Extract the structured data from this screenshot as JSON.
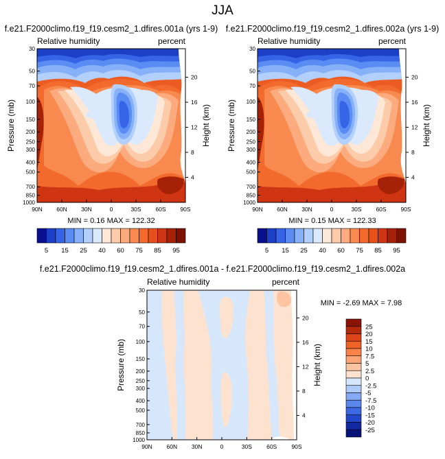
{
  "figure_title": "JJA",
  "chart_data": [
    {
      "type": "heatmap",
      "panel": "top-left",
      "title": "f.e21.F2000climo.f19_f19.cesm2_1.dfires.001a (yrs 1-9)",
      "left_label": "Relative humidity",
      "right_label": "percent",
      "xlabel": "",
      "ylabel": "Pressure (mb)",
      "y2label": "Height (km)",
      "x_ticks": [
        "90N",
        "60N",
        "30N",
        "0",
        "30S",
        "60S",
        "90S"
      ],
      "y_ticks": [
        "1000",
        "850",
        "700",
        "500",
        "400",
        "300",
        "250",
        "200",
        "150",
        "100",
        "70",
        "50",
        "30"
      ],
      "y2_ticks": [
        "4",
        "8",
        "12",
        "16",
        "20"
      ],
      "stats": "MIN =  0.16  MAX = 122.32",
      "min": 0.16,
      "max": 122.32
    },
    {
      "type": "heatmap",
      "panel": "top-right",
      "title": "f.e21.F2000climo.f19_f19.cesm2_1.dfires.002a (yrs 1-9)",
      "left_label": "Relative humidity",
      "right_label": "percent",
      "xlabel": "",
      "ylabel": "Pressure (mb)",
      "y2label": "Height (km)",
      "x_ticks": [
        "90N",
        "60N",
        "30N",
        "0",
        "30S",
        "60S",
        "90S"
      ],
      "y_ticks": [
        "1000",
        "850",
        "700",
        "500",
        "400",
        "300",
        "250",
        "200",
        "150",
        "100",
        "70",
        "50",
        "30"
      ],
      "y2_ticks": [
        "4",
        "8",
        "12",
        "16",
        "20"
      ],
      "stats": "MIN =  0.15  MAX = 122.33",
      "min": 0.15,
      "max": 122.33
    },
    {
      "type": "heatmap",
      "panel": "bottom",
      "title": "f.e21.F2000climo.f19_f19.cesm2_1.dfires.001a - f.e21.F2000climo.f19_f19.cesm2_1.dfires.002a",
      "left_label": "Relative humidity",
      "right_label": "percent",
      "xlabel": "",
      "ylabel": "Pressure (mb)",
      "y2label": "Height (km)",
      "x_ticks": [
        "90N",
        "60N",
        "30N",
        "0",
        "30S",
        "60S",
        "90S"
      ],
      "y_ticks": [
        "1000",
        "850",
        "700",
        "500",
        "400",
        "300",
        "250",
        "200",
        "150",
        "100",
        "70",
        "50",
        "30"
      ],
      "y2_ticks": [
        "4",
        "8",
        "12",
        "16",
        "20"
      ],
      "stats": "MIN = -2.69  MAX =  7.98",
      "min": -2.69,
      "max": 7.98
    }
  ],
  "colorbar_top": {
    "labels": [
      "5",
      "15",
      "25",
      "40",
      "60",
      "75",
      "85",
      "95"
    ],
    "colors": [
      "#08108f",
      "#1c3fc8",
      "#3764e6",
      "#5a8cf4",
      "#86b0f8",
      "#b2d0fb",
      "#dbe9fc",
      "#fde8d8",
      "#fccbaa",
      "#fbab7d",
      "#f8894f",
      "#f26a2c",
      "#e5501b",
      "#cf3512",
      "#a52108",
      "#7d1203"
    ]
  },
  "colorbar_diff": {
    "labels": [
      "25",
      "20",
      "15",
      "10",
      "7.5",
      "5",
      "2.5",
      "0",
      "-2.5",
      "-5",
      "-7.5",
      "-10",
      "-15",
      "-20",
      "-25"
    ],
    "colors": [
      "#8a1405",
      "#b52a0b",
      "#dd4417",
      "#f06327",
      "#f8834b",
      "#fba476",
      "#fdc4a2",
      "#fde3cf",
      "#d6e6fb",
      "#adcaf8",
      "#84aaf4",
      "#5c88ee",
      "#3c68e4",
      "#2447c9",
      "#12289e",
      "#08137a"
    ]
  }
}
